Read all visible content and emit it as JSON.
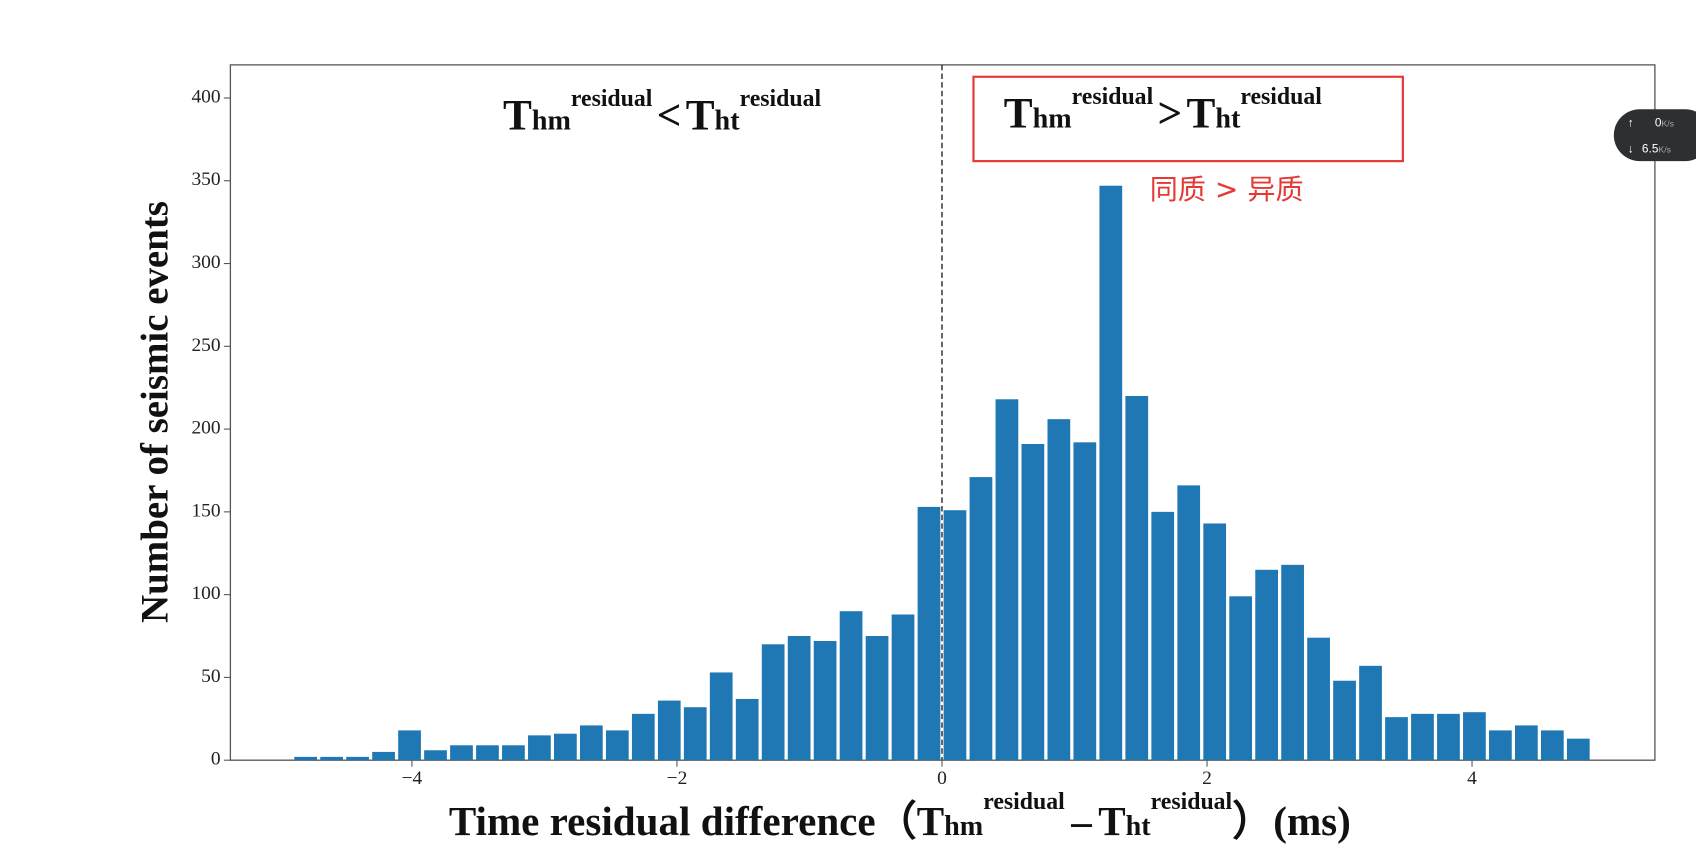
{
  "chart_data": {
    "type": "histogram",
    "bins": [
      -4.9,
      -4.704,
      -4.508,
      -4.312,
      -4.116,
      -3.92,
      -3.724,
      -3.528,
      -3.332,
      -3.136,
      -2.94,
      -2.744,
      -2.548,
      -2.352,
      -2.156,
      -1.96,
      -1.764,
      -1.568,
      -1.372,
      -1.176,
      -0.98,
      -0.784,
      -0.588,
      -0.392,
      -0.196,
      0,
      0.196,
      0.392,
      0.588,
      0.784,
      0.98,
      1.176,
      1.372,
      1.568,
      1.764,
      1.96,
      2.156,
      2.352,
      2.548,
      2.744,
      2.94,
      3.136,
      3.332,
      3.528,
      3.724,
      3.92,
      4.116,
      4.312,
      4.508,
      4.704,
      4.9
    ],
    "values": [
      2,
      2,
      2,
      5,
      18,
      6,
      9,
      9,
      9,
      15,
      16,
      21,
      18,
      28,
      36,
      32,
      53,
      37,
      70,
      75,
      72,
      90,
      75,
      88,
      153,
      151,
      171,
      218,
      191,
      206,
      192,
      347,
      220,
      150,
      166,
      143,
      99,
      115,
      118,
      74,
      48,
      57,
      26,
      28,
      28,
      29,
      18,
      21,
      18,
      13
    ],
    "color": "#1f77b4",
    "xlim": [
      -5.37,
      5.38
    ],
    "ylim": [
      0,
      420
    ],
    "xticks": [
      {
        "value": -4,
        "label": "−4"
      },
      {
        "value": -2,
        "label": "−2"
      },
      0,
      2,
      4
    ],
    "yticks": [
      0,
      50,
      100,
      150,
      200,
      250,
      300,
      350,
      400
    ],
    "vline": 0,
    "y_label": "Number of seismic events",
    "x_label": {
      "parts": [
        "Time residual difference（",
        "T",
        "hm",
        "residual",
        "–",
        "T",
        "ht",
        "residual",
        "）(ms)"
      ]
    },
    "annotation_left": {
      "parts": [
        "T",
        "hm",
        "residual",
        "<",
        "T",
        "ht",
        "residual"
      ]
    },
    "annotation_right": {
      "parts": [
        "T",
        "hm",
        "residual",
        ">",
        "T",
        "ht",
        "residual"
      ]
    },
    "note": "同质 > 异质"
  },
  "widget": {
    "up": "0",
    "up_unit": "K/s",
    "down": "6.5",
    "down_unit": "K/s"
  }
}
